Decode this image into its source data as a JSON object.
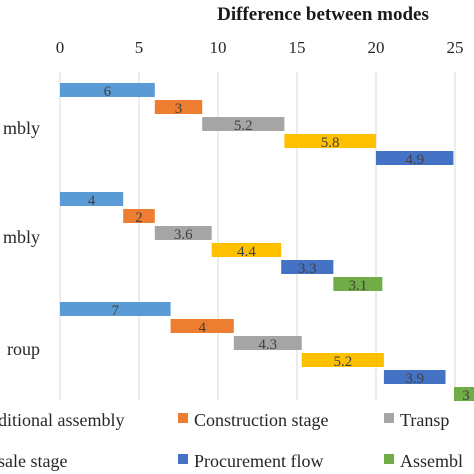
{
  "chart_data": {
    "type": "bar",
    "title": "Difference between modes",
    "xlabel": "",
    "ylabel": "",
    "xlim": [
      0,
      25
    ],
    "x_ticks": [
      0,
      5,
      10,
      15,
      20,
      25
    ],
    "grid": "vertical",
    "legend_position": "bottom",
    "stacked": true,
    "categories": [
      "mbly",
      "mbly",
      "roup"
    ],
    "series": [
      {
        "name": "ditional assembly",
        "color": "#5b9bd5",
        "values": [
          6,
          4,
          7
        ]
      },
      {
        "name": "Construction stage",
        "color": "#ed7d31",
        "values": [
          3,
          2,
          4
        ]
      },
      {
        "name": "Transp",
        "color": "#a5a5a5",
        "values": [
          5.2,
          3.6,
          4.3
        ]
      },
      {
        "name": "",
        "color": "#ffc000",
        "values": [
          5.8,
          4.4,
          5.2
        ]
      },
      {
        "name": "Procurement flow",
        "color": "#4472c4",
        "values": [
          4.9,
          3.3,
          3.9
        ]
      },
      {
        "name": "Assemb",
        "color": "#70ad47",
        "values": [
          null,
          3.1,
          null
        ]
      }
    ],
    "legend_rows": [
      [
        {
          "label": "ditional assembly",
          "color": "#5b9bd5"
        },
        {
          "label": "Construction stage",
          "color": "#ed7d31"
        },
        {
          "label": "Transp",
          "color": "#a5a5a5"
        }
      ],
      [
        {
          "label": "sale stage",
          "color": "#ffc000"
        },
        {
          "label": "Procurement flow",
          "color": "#4472c4"
        },
        {
          "label": "Assembl",
          "color": "#70ad47"
        }
      ]
    ],
    "partial_labels": [
      {
        "text": "3",
        "color": "#70ad47",
        "group": 2
      }
    ]
  }
}
